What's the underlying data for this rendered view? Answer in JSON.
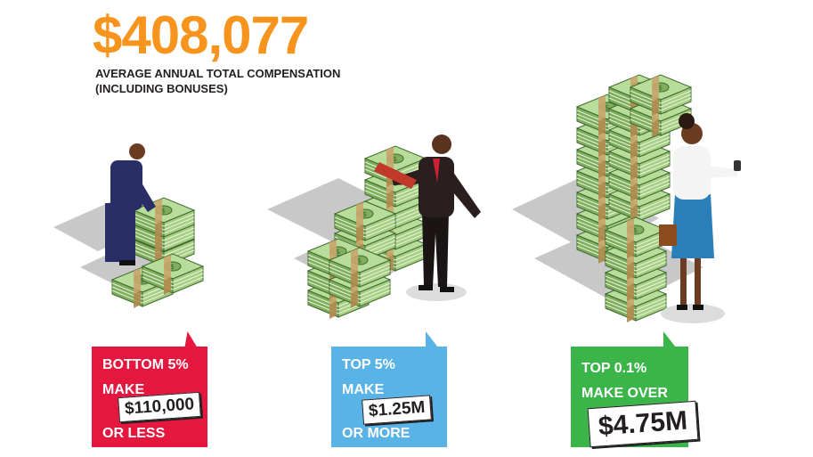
{
  "headline": {
    "amount": "$408,077",
    "caption_line1": "AVERAGE ANNUAL TOTAL COMPENSATION",
    "caption_line2": "(INCLUDING BONUSES)"
  },
  "tiers": [
    {
      "line1": "BOTTOM 5%",
      "line2": "MAKE",
      "amount": "$110,000",
      "line3": "OR LESS",
      "color": "#e5173f"
    },
    {
      "line1": "TOP 5%",
      "line2": "MAKE",
      "amount": "$1.25M",
      "line3": "OR MORE",
      "color": "#59b3e6"
    },
    {
      "line1": "TOP 0.1%",
      "line2": "MAKE OVER",
      "amount": "$4.75M",
      "line3": "",
      "color": "#3bb54a"
    }
  ],
  "colors": {
    "accent": "#f7941d",
    "money": "#9cc77a",
    "band": "#c9a56b"
  }
}
